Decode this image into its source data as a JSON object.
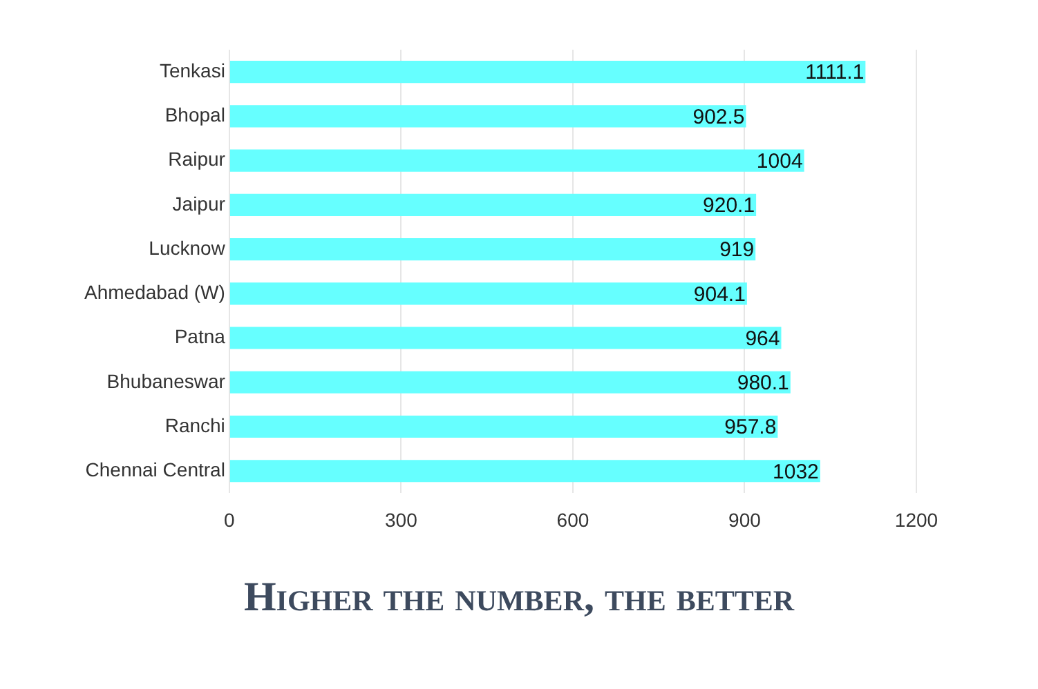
{
  "chart_data": {
    "type": "bar",
    "orientation": "horizontal",
    "title": "Higher the number, the better",
    "categories": [
      "Tenkasi",
      "Bhopal",
      "Raipur",
      "Jaipur",
      "Lucknow",
      "Ahmedabad (W)",
      "Patna",
      "Bhubaneswar",
      "Ranchi",
      "Chennai Central"
    ],
    "values": [
      1111.1,
      902.5,
      1004,
      920.1,
      919,
      904.1,
      964,
      980.1,
      957.8,
      1032
    ],
    "color": "#66ffff",
    "xlim": [
      0,
      1200
    ],
    "xticks": [
      0,
      300,
      600,
      900,
      1200
    ],
    "grid": "x",
    "data_labels": true,
    "legend": false
  }
}
